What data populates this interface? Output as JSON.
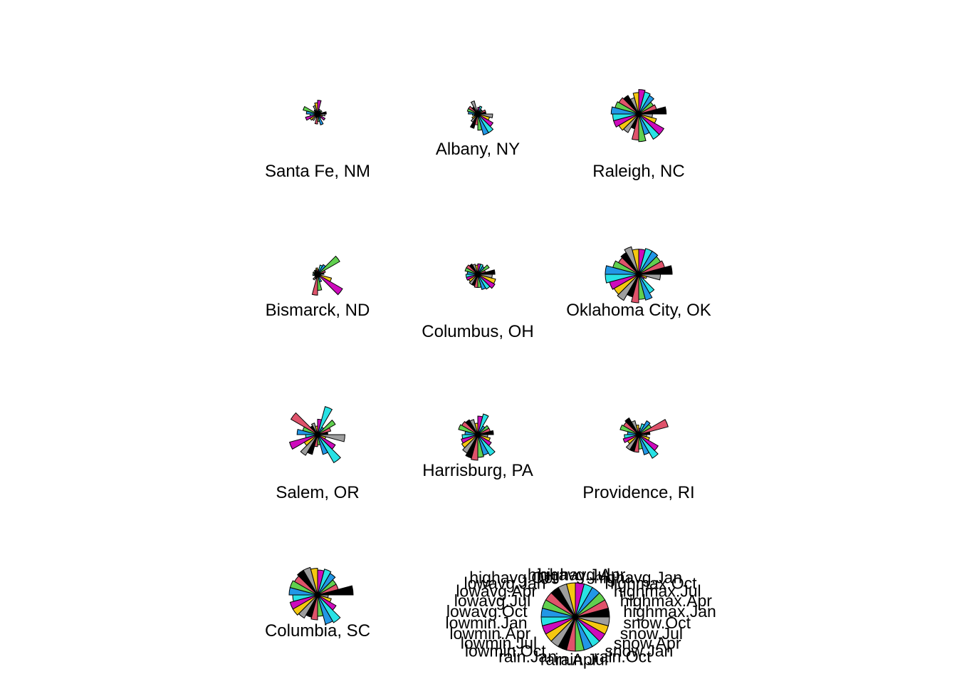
{
  "chart_data": {
    "type": "star-segments",
    "variables": [
      "highmax.Jan",
      "highmax.Apr",
      "highmax.Jul",
      "highmax.Oct",
      "highavg.Jan",
      "highavg.Apr",
      "highavg.Jul",
      "highavg.Oct",
      "lowavg.Jan",
      "lowavg.Apr",
      "lowavg.Jul",
      "lowavg.Oct",
      "lowmin.Jan",
      "lowmin.Apr",
      "lowmin.Jul",
      "lowmin.Oct",
      "rain.Jan",
      "rain.Apr",
      "rain.Jul",
      "rain.Oct",
      "snow.Jan",
      "snow.Apr",
      "snow.Jul",
      "snow.Oct"
    ],
    "colors": [
      "#000000",
      "#DF536B",
      "#61D04F",
      "#2297E6",
      "#28E2E5",
      "#CD0BBC",
      "#F5C710",
      "#9E9E9E"
    ],
    "key": {
      "labels": [
        "highmax.Jan",
        "highmax.Apr",
        "highmax.Jul",
        "highmax.Oct",
        "highavg.Jan",
        "highavg.Apr",
        "highavg.Jul",
        "highavg.Oct",
        "lowavg.Jan",
        "lowavg.Apr",
        "lowavg.Jul",
        "lowavg.Oct",
        "lowmin.Jan",
        "lowmin.Apr",
        "lowmin.Jul",
        "lowmin.Oct",
        "rain.Jan",
        "rain.Apr",
        "rain.Jul",
        "rain.Oct",
        "snow.Jan",
        "snow.Apr",
        "snow.Jul",
        "snow.Oct"
      ]
    },
    "cities": [
      {
        "name": "Santa Fe, NM",
        "values": [
          0.35,
          0.15,
          0.2,
          0.15,
          0.2,
          0.55,
          0.45,
          0.35,
          0.2,
          0.15,
          0.6,
          0.45,
          0.3,
          0.5,
          0.35,
          0.3,
          0.15,
          0.4,
          0.3,
          0.45,
          0.2,
          0.35,
          0.2,
          0.3
        ]
      },
      {
        "name": "Albany, NY",
        "values": [
          0.3,
          0.3,
          0.2,
          0.2,
          0.3,
          0.25,
          0.15,
          0.5,
          0.3,
          0.4,
          0.4,
          0.35,
          0.2,
          0.15,
          0.25,
          0.35,
          0.55,
          0.4,
          0.6,
          0.8,
          0.8,
          0.65,
          0.45,
          0.55
        ]
      },
      {
        "name": "Raleigh, NC",
        "values": [
          0.9,
          0.6,
          0.55,
          0.7,
          0.75,
          0.8,
          0.7,
          0.55,
          0.7,
          0.75,
          0.8,
          0.9,
          0.85,
          0.85,
          0.75,
          0.7,
          0.5,
          0.85,
          0.9,
          0.7,
          0.95,
          0.95,
          0.6,
          0.45
        ]
      },
      {
        "name": "Bismarck, ND",
        "values": [
          0.2,
          0.25,
          0.8,
          0.35,
          0.3,
          0.15,
          0.2,
          0.15,
          0.15,
          0.1,
          0.15,
          0.1,
          0.15,
          0.1,
          0.1,
          0.2,
          0.15,
          0.65,
          0.5,
          0.25,
          0.1,
          0.9,
          0.45,
          0.1
        ]
      },
      {
        "name": "Columbus, OH",
        "values": [
          0.65,
          0.3,
          0.5,
          0.35,
          0.4,
          0.4,
          0.35,
          0.4,
          0.45,
          0.5,
          0.5,
          0.4,
          0.45,
          0.45,
          0.4,
          0.45,
          0.45,
          0.5,
          0.5,
          0.6,
          0.65,
          0.75,
          0.7,
          0.55
        ]
      },
      {
        "name": "Oklahoma City, OK",
        "values": [
          1.0,
          0.8,
          0.75,
          0.8,
          0.8,
          0.75,
          0.75,
          0.85,
          0.75,
          0.7,
          0.8,
          1.0,
          1.0,
          0.9,
          0.85,
          0.9,
          0.7,
          0.85,
          0.75,
          0.8,
          0.65,
          0.2,
          0.25,
          0.65
        ]
      },
      {
        "name": "Salem, OR",
        "values": [
          0.3,
          0.4,
          0.6,
          0.25,
          0.85,
          0.45,
          0.25,
          0.35,
          0.3,
          0.9,
          0.45,
          0.6,
          0.35,
          0.85,
          0.45,
          0.7,
          0.6,
          0.35,
          0.3,
          0.6,
          0.95,
          0.6,
          0.25,
          0.8
        ]
      },
      {
        "name": "Harrisburg, PA",
        "values": [
          0.55,
          0.45,
          0.45,
          0.35,
          0.75,
          0.65,
          0.4,
          0.55,
          0.6,
          0.65,
          0.7,
          0.45,
          0.55,
          0.6,
          0.65,
          0.75,
          0.85,
          0.9,
          0.8,
          0.75,
          0.85,
          0.55,
          0.45,
          0.35
        ]
      },
      {
        "name": "Providence, RI",
        "values": [
          0.35,
          0.95,
          0.45,
          0.5,
          0.35,
          0.2,
          0.3,
          0.45,
          0.6,
          0.55,
          0.6,
          0.35,
          0.45,
          0.5,
          0.4,
          0.55,
          0.55,
          0.55,
          0.45,
          0.65,
          0.85,
          0.7,
          0.35,
          0.25
        ]
      },
      {
        "name": "Columbia, SC",
        "values": [
          1.0,
          0.6,
          0.6,
          0.7,
          0.75,
          0.7,
          0.75,
          0.8,
          0.8,
          0.75,
          0.8,
          0.8,
          0.7,
          0.8,
          0.8,
          0.75,
          0.65,
          0.7,
          0.6,
          0.85,
          0.9,
          0.6,
          0.4,
          0.3
        ]
      }
    ]
  }
}
